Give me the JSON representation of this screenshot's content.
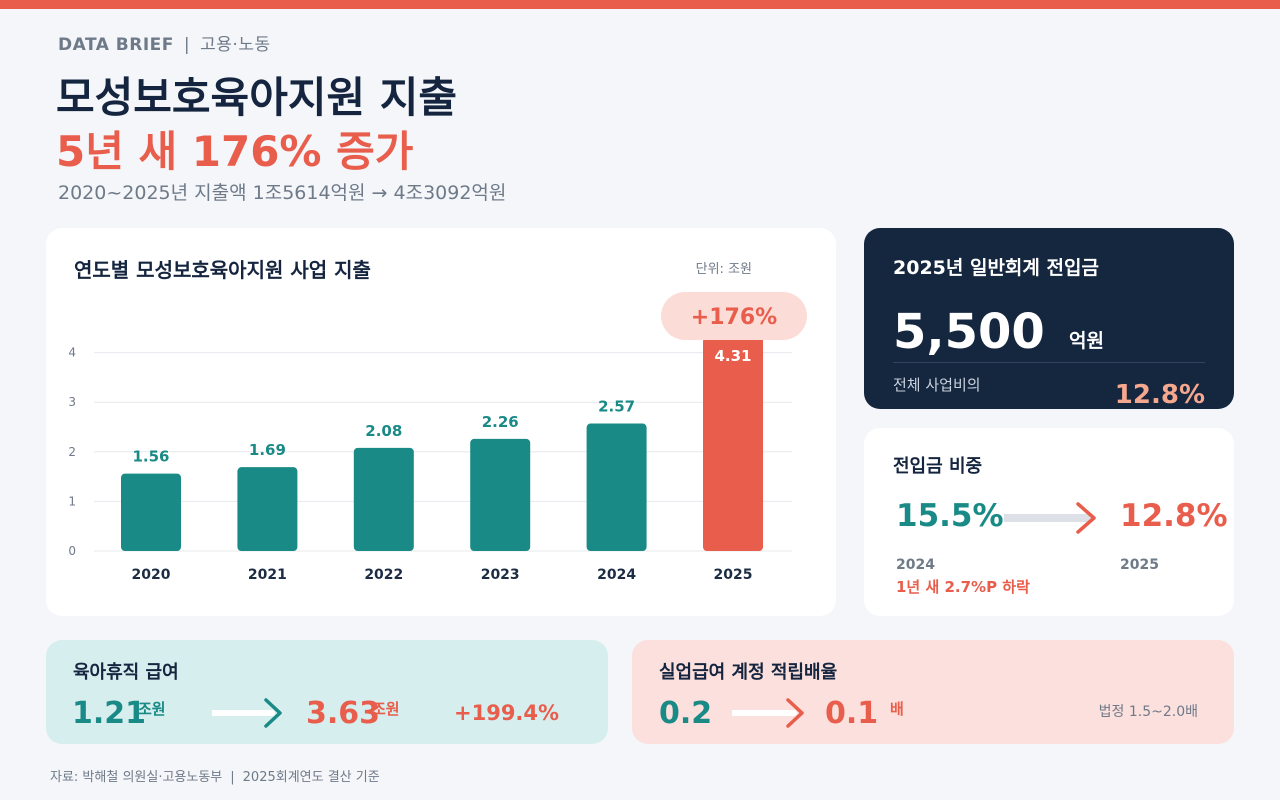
{
  "header": {
    "eyebrow": "DATA BRIEF",
    "eyebrow_sep": "|",
    "category": "고용·노동",
    "title_line1": "모성보호육아지원 지출",
    "title_line2": "5년 새 176% 증가",
    "subtitle": "2020~2025년 지출액 1조5614억원 → 4조3092억원"
  },
  "chart_card": {
    "title": "연도별 모성보호육아지원 사업 지출",
    "unit": "단위: 조원",
    "badge": "+176%"
  },
  "chart_data": {
    "type": "bar",
    "categories": [
      "2020",
      "2021",
      "2022",
      "2023",
      "2024",
      "2025"
    ],
    "values": [
      1.56,
      1.69,
      2.08,
      2.26,
      2.57,
      4.31
    ],
    "data_labels": [
      "1.56",
      "1.69",
      "2.08",
      "2.26",
      "2.57",
      "4.31"
    ],
    "y_ticks": [
      "0",
      "1",
      "2",
      "3",
      "4"
    ],
    "ylim": [
      0,
      4.3
    ],
    "grid": true,
    "highlight_index": 5,
    "colors": {
      "default": "#1a8a86",
      "highlight": "#e85d4b"
    }
  },
  "transfer_card": {
    "title": "2025년 일반회계 전입금",
    "value": "5,500",
    "unit": "억원",
    "ratio_label": "전체 사업비의",
    "ratio_value": "12.8%"
  },
  "share_card": {
    "title": "전입금 비중",
    "from_value": "15.5%",
    "to_value": "12.8%",
    "from_year": "2024",
    "to_year": "2025",
    "note": "1년 새 2.7%P 하락"
  },
  "leave_card": {
    "title": "육아휴직 급여",
    "from_value": "1.21",
    "from_unit": "조원",
    "to_value": "3.63",
    "to_unit": "조원",
    "growth": "+199.4%"
  },
  "reserve_card": {
    "title": "실업급여 계정 적립배율",
    "from_value": "0.2",
    "to_value": "0.1",
    "unit": "배",
    "note": "법정 1.5~2.0배"
  },
  "footer": {
    "source": "자료: 박해철 의원실·고용노동부",
    "sep": "|",
    "basis": "2025회계연도 결산 기준"
  },
  "colors": {
    "accent": "#e85d4b",
    "teal": "#1a8a86",
    "navy": "#15263f"
  }
}
